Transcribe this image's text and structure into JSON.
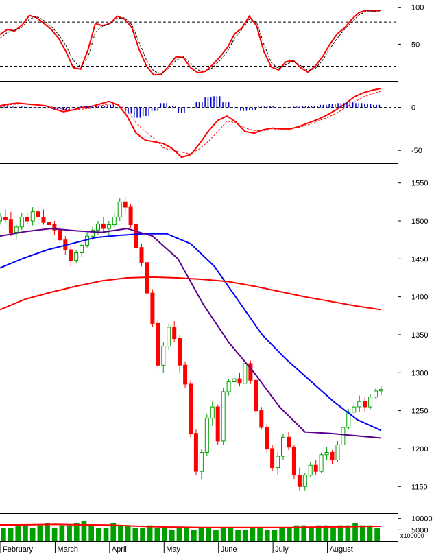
{
  "chart_data": [
    {
      "type": "line",
      "title": "",
      "panel": "stochastic",
      "ylim": [
        0,
        110
      ],
      "yticks": [
        50,
        100
      ],
      "reference_lines": [
        20,
        80
      ],
      "series": [
        {
          "color": "#ff0000",
          "style": "solid",
          "values": [
            63,
            70,
            68,
            76,
            89,
            86,
            78,
            70,
            58,
            40,
            18,
            16,
            42,
            78,
            75,
            78,
            88,
            84,
            72,
            42,
            20,
            8,
            9,
            20,
            33,
            32,
            18,
            11,
            13,
            22,
            33,
            45,
            64,
            72,
            88,
            75,
            40,
            19,
            15,
            26,
            28,
            18,
            12,
            20,
            33,
            50,
            64,
            72,
            84,
            93,
            96,
            95,
            96
          ]
        },
        {
          "color": "#000000",
          "style": "dashed",
          "values": [
            58,
            66,
            69,
            73,
            84,
            88,
            82,
            74,
            63,
            48,
            28,
            19,
            32,
            66,
            74,
            78,
            85,
            86,
            76,
            52,
            28,
            13,
            10,
            17,
            28,
            33,
            24,
            15,
            13,
            18,
            28,
            40,
            58,
            70,
            84,
            80,
            50,
            25,
            17,
            22,
            27,
            21,
            14,
            17,
            28,
            44,
            58,
            70,
            80,
            90,
            95,
            95,
            95
          ]
        }
      ]
    },
    {
      "type": "line",
      "title": "",
      "panel": "macd",
      "ylim": [
        -65,
        30
      ],
      "yticks": [
        -50,
        0
      ],
      "series": [
        {
          "color": "#ff0000",
          "style": "solid",
          "values": [
            2,
            4,
            5,
            4,
            3,
            2,
            -2,
            -5,
            -3,
            0,
            1,
            4,
            7,
            3,
            -10,
            -30,
            -38,
            -40,
            -42,
            -48,
            -58,
            -55,
            -42,
            -27,
            -15,
            -10,
            -17,
            -28,
            -30,
            -26,
            -24,
            -25,
            -25,
            -22,
            -18,
            -14,
            -9,
            -3,
            4,
            12,
            17,
            20,
            22
          ]
        },
        {
          "color": "#ff0000",
          "style": "dashed",
          "values": [
            1,
            3,
            4,
            4,
            3,
            2,
            0,
            -2,
            -3,
            -2,
            -1,
            2,
            4,
            3,
            -3,
            -18,
            -28,
            -36,
            -47,
            -50,
            -52,
            -54,
            -48,
            -39,
            -28,
            -16,
            -18,
            -24,
            -27,
            -27,
            -26,
            -25,
            -24,
            -23,
            -20,
            -16,
            -12,
            -7,
            -1,
            6,
            12,
            16,
            19
          ]
        },
        {
          "color": "#0000cc",
          "style": "histogram",
          "values": [
            1,
            1,
            1,
            0,
            0,
            0,
            -2,
            -3,
            0,
            2,
            2,
            2,
            3,
            0,
            -7,
            -12,
            -10,
            -4,
            5,
            2,
            -6,
            -1,
            6,
            12,
            13,
            6,
            -1,
            -4,
            -3,
            1,
            2,
            0,
            -1,
            1,
            2,
            2,
            3,
            4,
            5,
            6,
            5,
            4,
            3
          ]
        }
      ]
    },
    {
      "type": "candlestick",
      "title": "",
      "panel": "price",
      "ylim": [
        1115,
        1575
      ],
      "yticks": [
        1150,
        1200,
        1250,
        1300,
        1350,
        1400,
        1450,
        1500,
        1550
      ],
      "candles_ohlc": [
        [
          1500,
          1510,
          1495,
          1505
        ],
        [
          1505,
          1515,
          1498,
          1502
        ],
        [
          1502,
          1512,
          1480,
          1485
        ],
        [
          1485,
          1495,
          1475,
          1492
        ],
        [
          1492,
          1510,
          1488,
          1505
        ],
        [
          1505,
          1512,
          1495,
          1500
        ],
        [
          1500,
          1518,
          1494,
          1512
        ],
        [
          1512,
          1520,
          1500,
          1505
        ],
        [
          1505,
          1515,
          1495,
          1498
        ],
        [
          1498,
          1508,
          1488,
          1495
        ],
        [
          1495,
          1500,
          1482,
          1488
        ],
        [
          1488,
          1495,
          1470,
          1475
        ],
        [
          1475,
          1480,
          1455,
          1462
        ],
        [
          1462,
          1468,
          1440,
          1448
        ],
        [
          1448,
          1462,
          1445,
          1458
        ],
        [
          1458,
          1470,
          1452,
          1468
        ],
        [
          1468,
          1485,
          1465,
          1480
        ],
        [
          1480,
          1492,
          1475,
          1488
        ],
        [
          1488,
          1500,
          1482,
          1496
        ],
        [
          1496,
          1505,
          1485,
          1490
        ],
        [
          1490,
          1500,
          1480,
          1495
        ],
        [
          1495,
          1510,
          1490,
          1505
        ],
        [
          1505,
          1530,
          1500,
          1525
        ],
        [
          1525,
          1532,
          1510,
          1518
        ],
        [
          1518,
          1522,
          1490,
          1495
        ],
        [
          1495,
          1500,
          1460,
          1465
        ],
        [
          1465,
          1470,
          1440,
          1445
        ],
        [
          1445,
          1448,
          1400,
          1405
        ],
        [
          1405,
          1410,
          1360,
          1365
        ],
        [
          1365,
          1370,
          1305,
          1310
        ],
        [
          1310,
          1340,
          1300,
          1335
        ],
        [
          1335,
          1365,
          1330,
          1360
        ],
        [
          1360,
          1368,
          1340,
          1345
        ],
        [
          1345,
          1350,
          1300,
          1310
        ],
        [
          1310,
          1315,
          1280,
          1285
        ],
        [
          1285,
          1290,
          1215,
          1220
        ],
        [
          1220,
          1225,
          1165,
          1170
        ],
        [
          1170,
          1200,
          1160,
          1195
        ],
        [
          1195,
          1245,
          1190,
          1240
        ],
        [
          1240,
          1262,
          1230,
          1255
        ],
        [
          1255,
          1258,
          1205,
          1210
        ],
        [
          1210,
          1280,
          1205,
          1275
        ],
        [
          1275,
          1292,
          1270,
          1288
        ],
        [
          1288,
          1298,
          1280,
          1292
        ],
        [
          1292,
          1300,
          1282,
          1286
        ],
        [
          1286,
          1318,
          1284,
          1312
        ],
        [
          1312,
          1316,
          1285,
          1290
        ],
        [
          1290,
          1292,
          1245,
          1250
        ],
        [
          1250,
          1255,
          1225,
          1228
        ],
        [
          1228,
          1232,
          1195,
          1200
        ],
        [
          1200,
          1205,
          1170,
          1175
        ],
        [
          1175,
          1195,
          1165,
          1190
        ],
        [
          1190,
          1220,
          1185,
          1215
        ],
        [
          1215,
          1222,
          1198,
          1202
        ],
        [
          1202,
          1205,
          1160,
          1165
        ],
        [
          1165,
          1175,
          1145,
          1150
        ],
        [
          1150,
          1168,
          1145,
          1165
        ],
        [
          1165,
          1182,
          1162,
          1178
        ],
        [
          1178,
          1185,
          1165,
          1170
        ],
        [
          1170,
          1195,
          1168,
          1192
        ],
        [
          1192,
          1202,
          1185,
          1195
        ],
        [
          1195,
          1198,
          1180,
          1185
        ],
        [
          1185,
          1210,
          1182,
          1205
        ],
        [
          1205,
          1232,
          1202,
          1228
        ],
        [
          1228,
          1252,
          1225,
          1248
        ],
        [
          1248,
          1260,
          1240,
          1255
        ],
        [
          1255,
          1270,
          1248,
          1262
        ],
        [
          1262,
          1268,
          1248,
          1255
        ],
        [
          1255,
          1272,
          1252,
          1268
        ],
        [
          1268,
          1280,
          1265,
          1276
        ],
        [
          1276,
          1282,
          1270,
          1278
        ]
      ],
      "moving_averages": [
        {
          "color": "#0000ff",
          "values": [
            1438,
            1451,
            1462,
            1470,
            1478,
            1481,
            1483,
            1483,
            1470,
            1440,
            1395,
            1350,
            1318,
            1290,
            1262,
            1238,
            1224
          ]
        },
        {
          "color": "#ff0000",
          "values": [
            1383,
            1397,
            1406,
            1414,
            1421,
            1425,
            1426,
            1425,
            1423,
            1420,
            1414,
            1407,
            1400,
            1394,
            1388,
            1383
          ]
        },
        {
          "color": "#5a008c",
          "values": [
            1480,
            1486,
            1490,
            1487,
            1485,
            1490,
            1480,
            1450,
            1390,
            1340,
            1300,
            1255,
            1222,
            1220,
            1217,
            1214
          ]
        }
      ]
    },
    {
      "type": "bar",
      "title": "",
      "panel": "volume",
      "unit_label": "x100000",
      "ylim": [
        0,
        12000
      ],
      "yticks": [
        5000,
        10000
      ],
      "values": [
        6,
        6,
        7,
        7,
        6,
        7,
        8,
        6,
        7,
        7,
        8,
        9,
        7,
        6,
        6,
        8,
        7,
        7,
        6,
        6,
        7,
        6,
        6,
        5,
        6,
        6,
        5,
        6,
        6,
        5,
        6,
        6,
        5,
        5,
        6,
        6,
        5,
        5,
        6,
        6,
        7,
        7,
        6,
        7,
        7,
        6,
        7,
        7,
        8,
        7,
        7,
        6
      ],
      "ma_color": "#ff0000",
      "ma_values": [
        7.2,
        7.2,
        7.3,
        7.4,
        7.3,
        7.2,
        7.1,
        6.8,
        6.5,
        6.3,
        6.2,
        6.1,
        6.1,
        6.1,
        6.1,
        6.1,
        6.1,
        6.2,
        6.3,
        6.4,
        6.5,
        6.6
      ]
    }
  ],
  "x_axis": {
    "months": [
      "February",
      "March",
      "April",
      "May",
      "June",
      "July",
      "August"
    ]
  },
  "colors": {
    "grid": "#000000",
    "up_candle": "#00a000",
    "down_candle": "#ff0000",
    "volume_bar": "#00a000",
    "histogram": "#0000cc"
  }
}
